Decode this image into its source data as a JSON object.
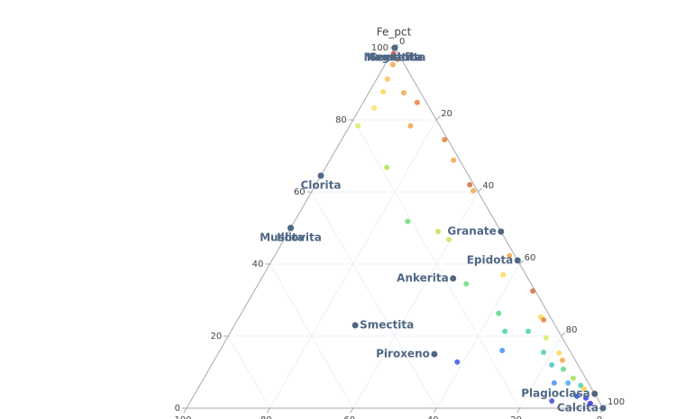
{
  "chart_data": {
    "type": "ternary",
    "aaxis": {
      "title": "Fe_pct",
      "ticks": [
        0,
        20,
        40,
        60,
        80,
        100
      ]
    },
    "baxis": {
      "ticks": [
        0,
        20,
        40,
        60,
        80,
        100
      ]
    },
    "caxis": {
      "ticks": [
        0,
        20,
        40,
        60,
        80,
        100
      ]
    },
    "grid": true,
    "series": [
      {
        "mode": "markers",
        "a": [
          98.3,
          96.8,
          95.3,
          91.3,
          87.8,
          87.5,
          84.8,
          83.3,
          78.3,
          78.3,
          74.5,
          68.8,
          66.8,
          62.0,
          60.3,
          51.8,
          49.0,
          46.8,
          42.3,
          37.0,
          34.5,
          32.5,
          26.3,
          25.3,
          21.3,
          21.3,
          19.5,
          16.0,
          15.3,
          15.5,
          12.8,
          12.0,
          10.8,
          8.3,
          7.0,
          6.3,
          7.0,
          3.3,
          2.8,
          2.0,
          1.3,
          3.8,
          5.3,
          13.3,
          24.5
        ],
        "b": [
          1.1,
          0.9,
          2.8,
          6.1,
          8.9,
          4.1,
          2.2,
          13.3,
          19.7,
          7.1,
          0.8,
          1.5,
          18.5,
          1.0,
          1.0,
          21.0,
          15.1,
          13.6,
          1.3,
          5.5,
          15.6,
          0.6,
          11.9,
          2.3,
          12.9,
          7.3,
          3.9,
          16.2,
          2.9,
          6.5,
          28.6,
          6.3,
          4.1,
          3.0,
          4.9,
          2.2,
          8.2,
          4.6,
          2.7,
          11.3,
          2.4,
          0.0,
          1.9,
          3.1,
          2.0
        ],
        "c": [
          0.6,
          2.3,
          1.9,
          2.6,
          3.3,
          8.4,
          13.0,
          3.4,
          2.0,
          14.6,
          24.7,
          29.7,
          14.7,
          37.0,
          38.7,
          27.2,
          35.9,
          39.6,
          56.4,
          57.5,
          49.9,
          66.9,
          61.8,
          72.4,
          65.8,
          71.4,
          76.6,
          67.8,
          81.8,
          78.0,
          58.6,
          81.7,
          85.1,
          88.7,
          88.1,
          91.5,
          84.8,
          92.1,
          94.5,
          86.7,
          96.3,
          96.2,
          92.8,
          83.6,
          73.5
        ],
        "colors": [
          "#d8482a",
          "#e8762f",
          "#f0a040",
          "#f5c242",
          "#f8d64a",
          "#f0a040",
          "#e8762f",
          "#f8e050",
          "#d8e858",
          "#f0a040",
          "#e8762f",
          "#f0a040",
          "#a8e048",
          "#d8602a",
          "#f0a040",
          "#60d870",
          "#b8e050",
          "#d0e050",
          "#f0a040",
          "#f8d64a",
          "#60d870",
          "#d8602a",
          "#50d878",
          "#f8d64a",
          "#40d0a0",
          "#40d0a0",
          "#d8e858",
          "#3a8cf0",
          "#f8d64a",
          "#40d0a0",
          "#3050e0",
          "#40c0c0",
          "#50d878",
          "#a0e050",
          "#3aa8e8",
          "#40d0a0",
          "#3a8cf0",
          "#2040e0",
          "#2a30e8",
          "#3040d0",
          "#2020e0",
          "#f0a040",
          "#f8d64a",
          "#f0a040",
          "#e8762f"
        ]
      },
      {
        "mode": "markers+text",
        "color": "#506784",
        "text": [
          "Hematita",
          "Magnetita",
          "Goethita",
          "Clorita",
          "Muscovita",
          "Illita",
          "Granate",
          "Epidota",
          "Ankerita",
          "Smectita",
          "Piroxeno",
          "Plagioclasa",
          "Calcita"
        ],
        "textposition": [
          "bottom center",
          "bottom center",
          "bottom center",
          "bottom center",
          "bottom center",
          "bottom center",
          "middle left",
          "middle left",
          "middle left",
          "middle right",
          "middle left",
          "middle left",
          "middle left"
        ],
        "a": [
          100,
          100,
          100,
          64.5,
          50,
          50,
          49,
          41,
          36,
          23,
          15,
          4,
          0
        ],
        "b": [
          0,
          0,
          0,
          35.5,
          50,
          50,
          0,
          0,
          18,
          48,
          33,
          0,
          0
        ],
        "c": [
          0,
          0,
          0,
          0,
          0,
          0,
          51,
          59,
          46,
          29,
          52,
          96,
          100
        ]
      }
    ]
  }
}
